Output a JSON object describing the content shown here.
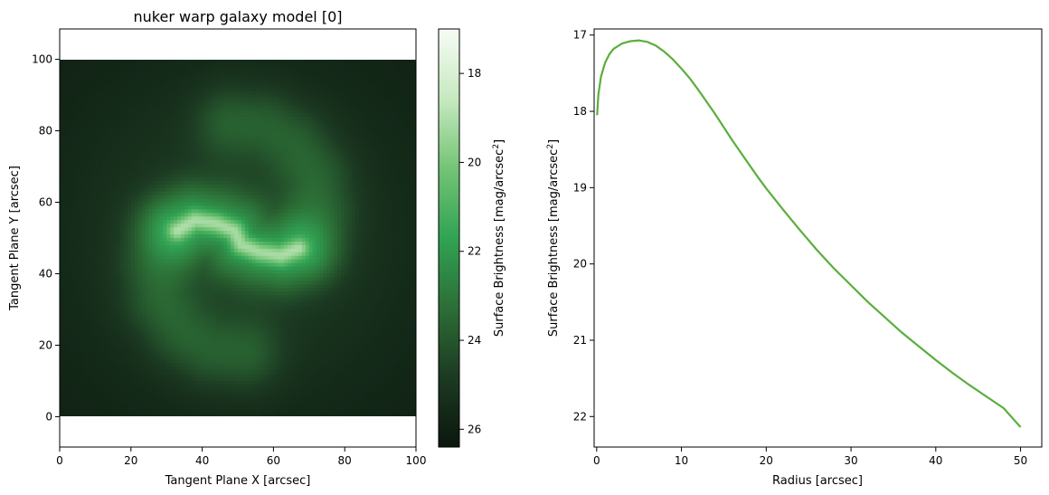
{
  "chart_data": [
    {
      "type": "heatmap",
      "title": "nuker warp galaxy model [0]",
      "xlabel": "Tangent Plane X [arcsec]",
      "ylabel": "Tangent Plane Y [arcsec]",
      "xlim": [
        0,
        100
      ],
      "ylim": [
        -8.5,
        108.5
      ],
      "image_extent": {
        "x": [
          0,
          100
        ],
        "y": [
          0,
          100
        ]
      },
      "xticks": [
        0,
        20,
        40,
        60,
        80,
        100
      ],
      "yticks": [
        0,
        20,
        40,
        60,
        80,
        100
      ],
      "colorbar": {
        "label": "Surface Brightness [mag/arcsec",
        "label_superscript": "2",
        "label_suffix": "]",
        "range": [
          17.0,
          26.4
        ],
        "inverted": true,
        "ticks": [
          18,
          20,
          22,
          24,
          26
        ],
        "colormap": [
          "#f7fcf5",
          "#c7e9c0",
          "#74c476",
          "#31a354",
          "#2c6e36",
          "#1c3a22",
          "#0b170e"
        ]
      },
      "model": {
        "center": [
          50,
          50
        ],
        "arm_points": [
          [
            33,
            52
          ],
          [
            38,
            55
          ],
          [
            44,
            54
          ],
          [
            49,
            52
          ],
          [
            51,
            48
          ],
          [
            56,
            46
          ],
          [
            62,
            45
          ],
          [
            67,
            47
          ]
        ],
        "outer_arms": [
          [
            [
              70,
              48
            ],
            [
              73,
              58
            ],
            [
              72,
              68
            ],
            [
              66,
              77
            ],
            [
              58,
              82
            ],
            [
              48,
              83
            ]
          ],
          [
            [
              30,
              52
            ],
            [
              27,
              42
            ],
            [
              28,
              32
            ],
            [
              34,
              23
            ],
            [
              42,
              18
            ],
            [
              52,
              17
            ]
          ]
        ]
      }
    },
    {
      "type": "line",
      "xlabel": "Radius [arcsec]",
      "ylabel": "Surface Brightness [mag/arcsec",
      "ylabel_superscript": "2",
      "ylabel_suffix": "]",
      "xlim": [
        -0.3,
        52.5
      ],
      "ylim": [
        22.4,
        16.92
      ],
      "yaxis_inverted": true,
      "xticks": [
        0,
        10,
        20,
        30,
        40,
        50
      ],
      "yticks": [
        17,
        18,
        19,
        20,
        21,
        22
      ],
      "series": [
        {
          "color": "#5aae3d",
          "x": [
            0.05,
            0.2,
            0.5,
            1,
            1.5,
            2,
            3,
            4,
            5,
            6,
            7,
            8,
            9,
            10,
            11,
            12,
            13,
            14,
            15,
            16,
            17,
            18,
            19,
            20,
            22,
            24,
            26,
            28,
            30,
            32,
            34,
            36,
            38,
            40,
            42,
            44,
            46,
            48,
            50
          ],
          "y": [
            18.05,
            17.78,
            17.55,
            17.36,
            17.25,
            17.18,
            17.11,
            17.08,
            17.07,
            17.09,
            17.14,
            17.22,
            17.32,
            17.44,
            17.57,
            17.72,
            17.88,
            18.04,
            18.21,
            18.38,
            18.54,
            18.7,
            18.86,
            19.01,
            19.29,
            19.56,
            19.82,
            20.06,
            20.28,
            20.5,
            20.7,
            20.9,
            21.08,
            21.26,
            21.43,
            21.59,
            21.74,
            21.89,
            22.14
          ]
        }
      ]
    }
  ]
}
